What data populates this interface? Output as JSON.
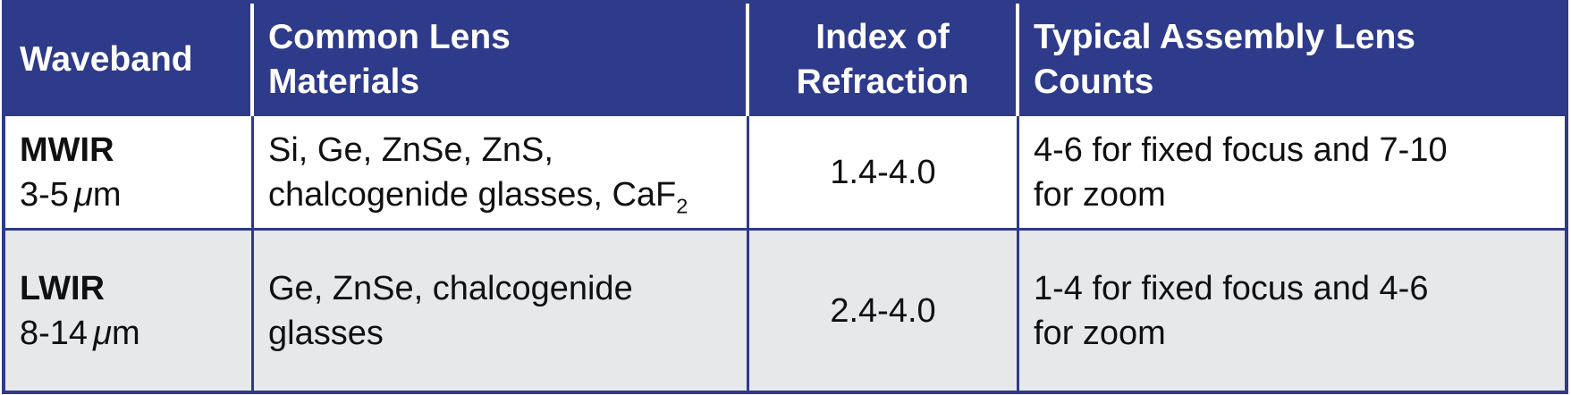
{
  "colors": {
    "header_bg": "#2e3a8a",
    "header_text": "#ffffff",
    "alt_row_bg": "#e7e8ea",
    "grid_border": "#2e3a8a",
    "body_text": "#101010"
  },
  "table": {
    "header": {
      "waveband": {
        "line1": "Waveband",
        "line2": ""
      },
      "materials": {
        "line1": "Common Lens",
        "line2": "Materials"
      },
      "index": {
        "line1": "Index of",
        "line2": "Refraction"
      },
      "counts": {
        "line1": "Typical Assembly Lens",
        "line2": "Counts"
      }
    },
    "rows": [
      {
        "band": "MWIR",
        "range": {
          "value": "3-5",
          "mu": "μ",
          "unit": "m"
        },
        "materials": {
          "line1": "Si, Ge, ZnSe, ZnS,",
          "line2": "chalcogenide glasses, CaF",
          "subscript": "2"
        },
        "index_of_refraction": "1.4-4.0",
        "counts": {
          "line1": "4-6 for fixed focus and 7-10",
          "line2": "for zoom"
        }
      },
      {
        "band": "LWIR",
        "range": {
          "value": "8-14",
          "mu": "μ",
          "unit": "m"
        },
        "materials": {
          "line1": "Ge, ZnSe, chalcogenide",
          "line2": "glasses",
          "subscript": ""
        },
        "index_of_refraction": "2.4-4.0",
        "counts": {
          "line1": "1-4 for fixed focus and 4-6",
          "line2": "for zoom"
        }
      }
    ]
  }
}
